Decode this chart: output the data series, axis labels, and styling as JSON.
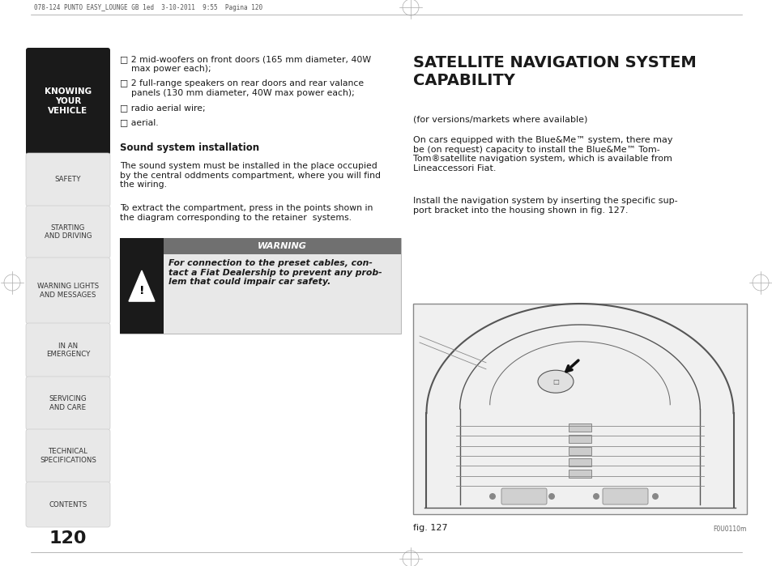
{
  "page_bg": "#ffffff",
  "header_text": "078-124 PUNTO EASY_LOUNGE GB 1ed  3-10-2011  9:55  Pagina 120",
  "page_number": "120",
  "sidebar_active_bg": "#1a1a1a",
  "sidebar_active_text": "#ffffff",
  "sidebar_active_label": "KNOWING\nYOUR\nVEHICLE",
  "sidebar_items": [
    "SAFETY",
    "STARTING\nAND DRIVING",
    "WARNING LIGHTS\nAND MESSAGES",
    "IN AN\nEMERGENCY",
    "SERVICING\nAND CARE",
    "TECHNICAL\nSPECIFICATIONS",
    "CONTENTS"
  ],
  "bullet_items": [
    "□ 2 mid-woofers on front doors (165 mm diameter, 40W\n    max power each);",
    "□ 2 full-range speakers on rear doors and rear valance\n    panels (130 mm diameter, 40W max power each);",
    "□ radio aerial wire;",
    "□ aerial."
  ],
  "sound_title": "Sound system installation",
  "sound_para1": "The sound system must be installed in the place occupied\nby the central oddments compartment, where you will find\nthe wiring.",
  "sound_para2": "To extract the compartment, press in the points shown in\nthe diagram corresponding to the retainer  systems.",
  "warning_box_bg": "#e8e8e8",
  "warning_header_bg": "#707070",
  "warning_header_text": "WARNING",
  "warning_icon_bg": "#1a1a1a",
  "warning_body": "For connection to the preset cables, con-\ntact a Fiat Dealership to prevent any prob-\nlem that could impair car safety.",
  "right_title": "SATELLITE NAVIGATION SYSTEM\nCAPABILITY",
  "right_subtitle": "(for versions/markets where available)",
  "right_para1": "On cars equipped with the Blue&Me™ system, there may\nbe (on request) capacity to install the Blue&Me™ Tom-\nTom®satellite navigation system, which is available from\nLineaccessori Fiat.",
  "right_para2": "Install the navigation system by inserting the specific sup-\nport bracket into the housing shown in fig. 127.",
  "fig_caption": "fig. 127",
  "fig_code": "F0U0110m",
  "text_color": "#1a1a1a"
}
